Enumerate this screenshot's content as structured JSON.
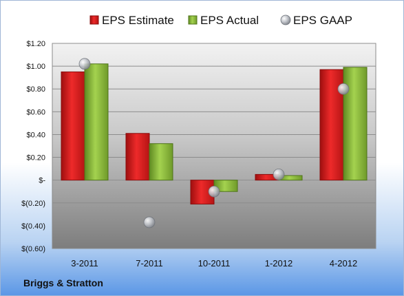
{
  "company": "Briggs & Stratton",
  "chart_data": {
    "type": "bar",
    "categories": [
      "3-2011",
      "7-2011",
      "10-2011",
      "1-2012",
      "4-2012"
    ],
    "series": [
      {
        "name": "EPS Estimate",
        "kind": "bar",
        "color": "#e01c1c",
        "values": [
          0.95,
          0.41,
          -0.21,
          0.05,
          0.97
        ]
      },
      {
        "name": "EPS Actual",
        "kind": "bar",
        "color": "#8fc13e",
        "values": [
          1.02,
          0.32,
          -0.1,
          0.04,
          0.99
        ]
      },
      {
        "name": "EPS GAAP",
        "kind": "marker",
        "color": "#b8bcc4",
        "values": [
          1.02,
          -0.37,
          -0.1,
          0.05,
          0.8
        ]
      }
    ],
    "y_ticks": [
      {
        "value": 1.2,
        "label": "$1.20"
      },
      {
        "value": 1.0,
        "label": "$1.00"
      },
      {
        "value": 0.8,
        "label": "$0.80"
      },
      {
        "value": 0.6,
        "label": "$0.60"
      },
      {
        "value": 0.4,
        "label": "$0.40"
      },
      {
        "value": 0.2,
        "label": "$0.20"
      },
      {
        "value": 0.0,
        "label": "$-"
      },
      {
        "value": -0.2,
        "label": "$(0.20)"
      },
      {
        "value": -0.4,
        "label": "$(0.40)"
      },
      {
        "value": -0.6,
        "label": "$(0.60)"
      }
    ],
    "ylim": [
      -0.6,
      1.2
    ],
    "grid": true,
    "legend_position": "top"
  }
}
